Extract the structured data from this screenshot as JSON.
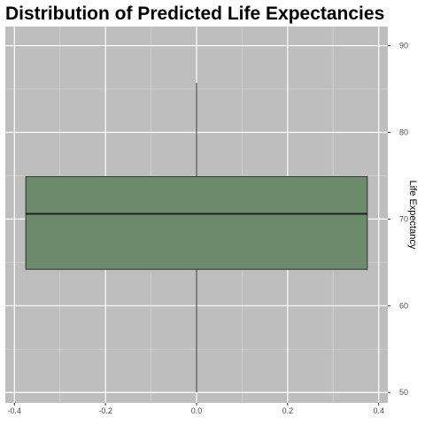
{
  "chart_data": {
    "type": "boxplot",
    "title": "Distribution of Predicted Life Expectancies",
    "xlabel": "",
    "ylabel": "Life Expectancy",
    "y_axis_position": "right",
    "xlim": [
      -0.42,
      0.42
    ],
    "ylim": [
      48.8,
      92.2
    ],
    "x_ticks": [
      -0.4,
      -0.2,
      0.0,
      0.2,
      0.4
    ],
    "x_tick_labels": [
      "-0.4",
      "-0.2",
      "0.0",
      "0.2",
      "0.4"
    ],
    "y_ticks": [
      50,
      60,
      70,
      80,
      90
    ],
    "y_tick_labels": [
      "50",
      "60",
      "70",
      "80",
      "90"
    ],
    "box": {
      "x_range": [
        -0.375,
        0.375
      ],
      "min": 50.0,
      "q1": 64.2,
      "median": 70.6,
      "q3": 74.9,
      "max": 85.7
    },
    "grid": true,
    "colors": {
      "panel_background": "#bebebe",
      "grid_major": "#ffffff",
      "grid_minor": "#d2d2d2",
      "box_fill": "#6b8b6b",
      "box_stroke": "#333333"
    }
  }
}
